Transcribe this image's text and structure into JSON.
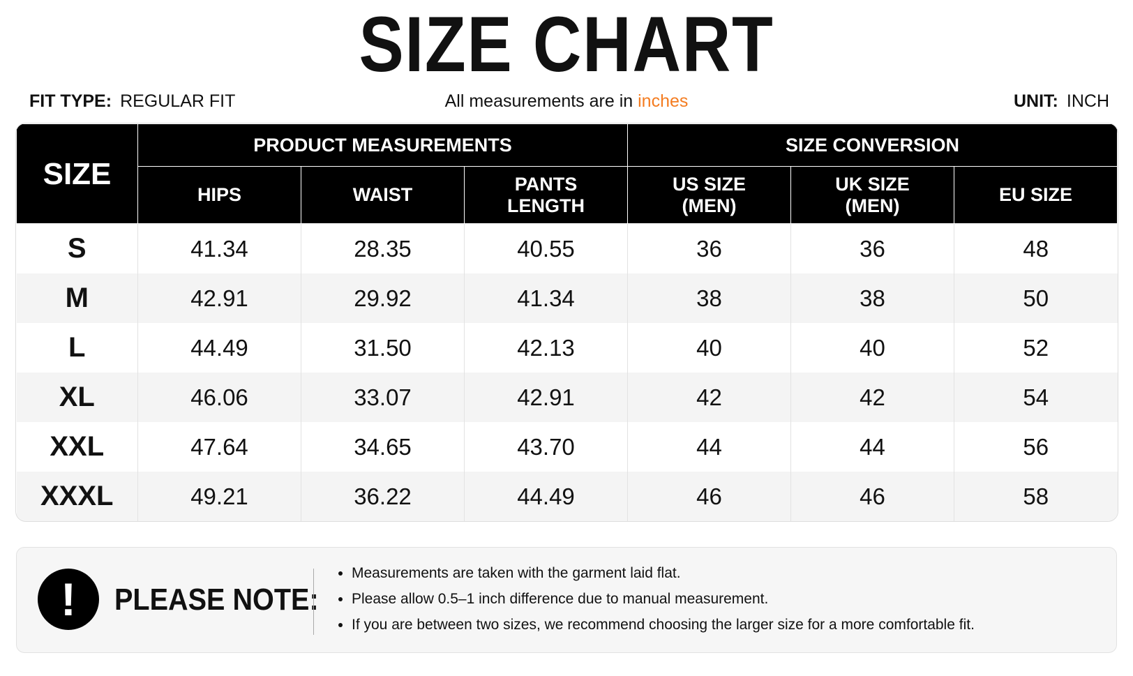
{
  "header": {
    "title": "SIZE CHART",
    "fit_type": {
      "label": "FIT TYPE:",
      "value": "REGULAR FIT"
    },
    "note": {
      "text": "All measurements are in",
      "highlight": "inches"
    },
    "unit": {
      "label": "UNIT:",
      "value": "INCH"
    }
  },
  "table": {
    "size_header": "SIZE",
    "groups": [
      "PRODUCT MEASUREMENTS",
      "SIZE CONVERSION"
    ],
    "columns": [
      "HIPS",
      "WAIST",
      "PANTS LENGTH",
      "US SIZE (MEN)",
      "UK SIZE (MEN)",
      "EU SIZE"
    ],
    "rows": [
      [
        "S",
        "41.34",
        "28.35",
        "40.55",
        "36",
        "36",
        "48"
      ],
      [
        "M",
        "42.91",
        "29.92",
        "41.34",
        "38",
        "38",
        "50"
      ],
      [
        "L",
        "44.49",
        "31.50",
        "42.13",
        "40",
        "40",
        "52"
      ],
      [
        "XL",
        "46.06",
        "33.07",
        "42.91",
        "42",
        "42",
        "54"
      ],
      [
        "XXL",
        "47.64",
        "34.65",
        "43.70",
        "44",
        "44",
        "56"
      ],
      [
        "XXXL",
        "49.21",
        "36.22",
        "44.49",
        "46",
        "46",
        "58"
      ]
    ]
  },
  "notes": {
    "title": "PLEASE NOTE:",
    "items": [
      "Measurements are taken with the garment laid flat.",
      "Please allow 0.5–1 inch difference due to manual measurement.",
      "If you are between two sizes, we recommend choosing the larger size for a more comfortable fit."
    ]
  }
}
